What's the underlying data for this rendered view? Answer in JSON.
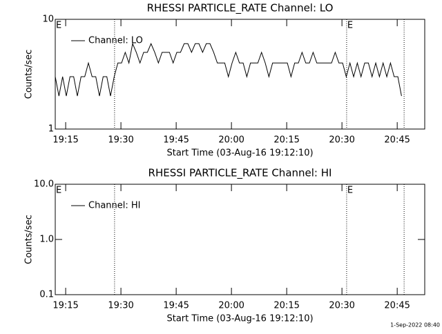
{
  "chart_data": [
    {
      "type": "line",
      "title": "RHESSI PARTICLE_RATE Channel: LO",
      "xlabel": "Start Time (03-Aug-16 19:12:10)",
      "ylabel": "Counts/sec",
      "log_y": true,
      "ylim": [
        1,
        10
      ],
      "yticks": [
        1,
        10
      ],
      "xlim": [
        0,
        100.3
      ],
      "xticks": [
        {
          "value": 2.83,
          "label": "19:15"
        },
        {
          "value": 17.83,
          "label": "19:30"
        },
        {
          "value": 32.83,
          "label": "19:45"
        },
        {
          "value": 47.83,
          "label": "20:00"
        },
        {
          "value": 62.83,
          "label": "20:15"
        },
        {
          "value": 77.83,
          "label": "20:30"
        },
        {
          "value": 92.83,
          "label": "20:45"
        }
      ],
      "vlines": [
        16.1,
        79.1,
        94.7
      ],
      "annotations": [
        {
          "text": "E",
          "x": 0
        },
        {
          "text": "E",
          "x": 79.1
        }
      ],
      "legend": "upper left",
      "x": [
        0,
        1,
        2,
        3,
        4,
        5,
        6,
        7,
        8,
        9,
        10,
        11,
        12,
        13,
        14,
        15,
        16,
        17,
        18,
        19,
        20,
        21,
        22,
        23,
        24,
        25,
        26,
        27,
        28,
        29,
        30,
        31,
        32,
        33,
        34,
        35,
        36,
        37,
        38,
        39,
        40,
        41,
        42,
        43,
        44,
        45,
        46,
        47,
        48,
        49,
        50,
        51,
        52,
        53,
        54,
        55,
        56,
        57,
        58,
        59,
        60,
        61,
        62,
        63,
        64,
        65,
        66,
        67,
        68,
        69,
        70,
        71,
        72,
        73,
        74,
        75,
        76,
        77,
        78,
        79,
        80,
        81,
        82,
        83,
        84,
        85,
        86,
        87,
        88,
        89,
        90,
        91,
        92,
        93,
        94
      ],
      "series": [
        {
          "name": "Channel: LO",
          "color": "#000000",
          "values": [
            3,
            2,
            3,
            2,
            3,
            3,
            2,
            3,
            3,
            4,
            3,
            3,
            2,
            3,
            3,
            2,
            3,
            4,
            4,
            5,
            4,
            6,
            5,
            4,
            5,
            5,
            6,
            5,
            4,
            5,
            5,
            5,
            4,
            5,
            5,
            6,
            6,
            5,
            6,
            6,
            5,
            6,
            6,
            5,
            4,
            4,
            4,
            3,
            4,
            5,
            4,
            4,
            3,
            4,
            4,
            4,
            5,
            4,
            3,
            4,
            4,
            4,
            4,
            4,
            3,
            4,
            4,
            5,
            4,
            4,
            5,
            4,
            4,
            4,
            4,
            4,
            5,
            4,
            4,
            3,
            4,
            3,
            4,
            3,
            4,
            4,
            3,
            4,
            3,
            4,
            3,
            4,
            3,
            3,
            2
          ]
        }
      ]
    },
    {
      "type": "line",
      "title": "RHESSI PARTICLE_RATE Channel: HI",
      "xlabel": "Start Time (03-Aug-16 19:12:10)",
      "ylabel": "Counts/sec",
      "log_y": true,
      "ylim": [
        0.1,
        10
      ],
      "yticks": [
        {
          "value": 0.1,
          "label": "0.1"
        },
        {
          "value": 1,
          "label": "1.0"
        },
        {
          "value": 10,
          "label": "10.0"
        }
      ],
      "xlim": [
        0,
        100.3
      ],
      "xticks": [
        {
          "value": 2.83,
          "label": "19:15"
        },
        {
          "value": 17.83,
          "label": "19:30"
        },
        {
          "value": 32.83,
          "label": "19:45"
        },
        {
          "value": 47.83,
          "label": "20:00"
        },
        {
          "value": 62.83,
          "label": "20:15"
        },
        {
          "value": 77.83,
          "label": "20:30"
        },
        {
          "value": 92.83,
          "label": "20:45"
        }
      ],
      "vlines": [
        16.1,
        79.1,
        94.7
      ],
      "annotations": [
        {
          "text": "E",
          "x": 0
        },
        {
          "text": "E",
          "x": 79.1
        }
      ],
      "legend": "upper left",
      "x": [],
      "series": [
        {
          "name": "Channel: HI",
          "color": "#000000",
          "values": []
        }
      ]
    }
  ],
  "footer": "1-Sep-2022 08:40"
}
